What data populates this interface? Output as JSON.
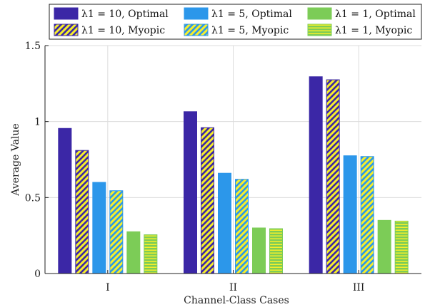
{
  "chart_data": {
    "type": "bar",
    "title": "",
    "xlabel": "Channel-Class Cases",
    "ylabel": "Average Value",
    "categories": [
      "I",
      "II",
      "III"
    ],
    "ylim": [
      0,
      1.5
    ],
    "yticks": [
      0,
      0.5,
      1,
      1.5
    ],
    "ytick_labels": [
      "0",
      "0.5",
      "1",
      "1.5"
    ],
    "grid": true,
    "legend_position": "top",
    "series": [
      {
        "name": "λ1 = 10, Optimal",
        "lambda": "10",
        "policy": "Optimal",
        "values": [
          0.955,
          1.065,
          1.295
        ],
        "color": "#3b27a6",
        "pattern": "solid"
      },
      {
        "name": "λ1 = 10, Myopic",
        "lambda": "10",
        "policy": "Myopic",
        "values": [
          0.81,
          0.96,
          1.275
        ],
        "color": "#f7ef2a",
        "stripe_color": "#3b27a6",
        "pattern": "diagonal"
      },
      {
        "name": "λ1 = 5, Optimal",
        "lambda": "5",
        "policy": "Optimal",
        "values": [
          0.6,
          0.66,
          0.775
        ],
        "color": "#2c97ea",
        "pattern": "solid"
      },
      {
        "name": "λ1 = 5, Myopic",
        "lambda": "5",
        "policy": "Myopic",
        "values": [
          0.545,
          0.62,
          0.77
        ],
        "color": "#f7ef2a",
        "stripe_color": "#2c97ea",
        "pattern": "diagonal"
      },
      {
        "name": "λ1 = 1, Optimal",
        "lambda": "1",
        "policy": "Optimal",
        "values": [
          0.275,
          0.3,
          0.35
        ],
        "color": "#7ccc57",
        "pattern": "solid"
      },
      {
        "name": "λ1 = 1, Myopic",
        "lambda": "1",
        "policy": "Myopic",
        "values": [
          0.255,
          0.295,
          0.345
        ],
        "color": "#f7ef2a",
        "stripe_color": "#7ccc57",
        "pattern": "horizontal"
      }
    ]
  }
}
